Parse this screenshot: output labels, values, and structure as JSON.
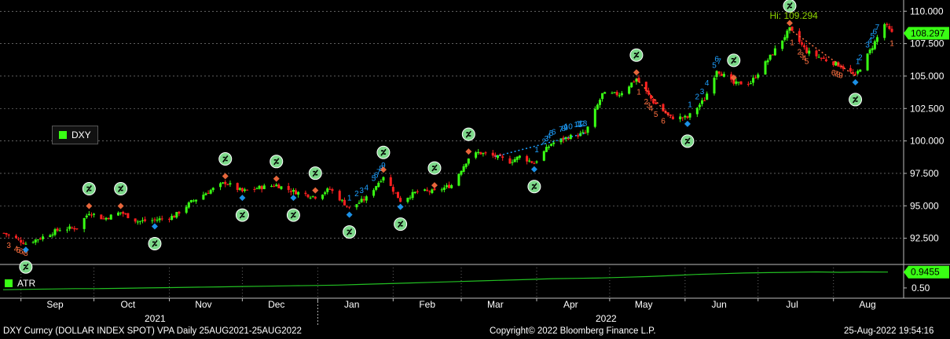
{
  "legend": {
    "main": "DXY",
    "atr": "ATR"
  },
  "footer": {
    "left": "DXY Curncy (DOLLAR INDEX SPOT) VPA  Daily 25AUG2021-25AUG2022",
    "center": "Copyright© 2022 Bloomberg Finance L.P.",
    "right": "25-Aug-2022 19:54:16"
  },
  "years": [
    "2021",
    "2022"
  ],
  "colors": {
    "up": "#39ff14",
    "down": "#ff2020",
    "grid": "#9a9a9a",
    "atr": "#22c022",
    "hi_label": "#8fd400",
    "last_price_box": "#39ff14",
    "count_up": "#1ea0ff",
    "count_down": "#ff7040",
    "signal_circle": "#7dd88a"
  },
  "chart_data": [
    {
      "type": "candlestick",
      "title": "DXY",
      "x_range": [
        "2021-08-25",
        "2022-08-25"
      ],
      "xticks": [
        "Sep",
        "Oct",
        "Nov",
        "Dec",
        "Jan",
        "Feb",
        "Mar",
        "Apr",
        "May",
        "Jun",
        "Jul",
        "Aug"
      ],
      "yticks": [
        "92.500",
        "95.000",
        "97.500",
        "100.000",
        "102.500",
        "105.000",
        "107.500",
        "110.000"
      ],
      "ylim": [
        90.6,
        110.5
      ],
      "grid": true,
      "last_price": "108.297",
      "annotations": {
        "high_label": "Hi: 109.294"
      },
      "close_path": [
        {
          "date": "2021-08-25",
          "close": 92.9
        },
        {
          "date": "2021-09-03",
          "close": 92.1
        },
        {
          "date": "2021-09-10",
          "close": 92.6
        },
        {
          "date": "2021-09-17",
          "close": 93.2
        },
        {
          "date": "2021-09-24",
          "close": 93.3
        },
        {
          "date": "2021-09-29",
          "close": 94.5
        },
        {
          "date": "2021-10-05",
          "close": 94.0
        },
        {
          "date": "2021-10-12",
          "close": 94.5
        },
        {
          "date": "2021-10-19",
          "close": 93.8
        },
        {
          "date": "2021-10-26",
          "close": 93.9
        },
        {
          "date": "2021-11-03",
          "close": 94.2
        },
        {
          "date": "2021-11-10",
          "close": 95.3
        },
        {
          "date": "2021-11-17",
          "close": 96.1
        },
        {
          "date": "2021-11-24",
          "close": 96.8
        },
        {
          "date": "2021-12-01",
          "close": 96.1
        },
        {
          "date": "2021-12-08",
          "close": 96.4
        },
        {
          "date": "2021-12-15",
          "close": 96.6
        },
        {
          "date": "2021-12-22",
          "close": 96.1
        },
        {
          "date": "2021-12-31",
          "close": 95.7
        },
        {
          "date": "2022-01-06",
          "close": 96.3
        },
        {
          "date": "2022-01-14",
          "close": 94.8
        },
        {
          "date": "2022-01-21",
          "close": 95.6
        },
        {
          "date": "2022-01-28",
          "close": 97.3
        },
        {
          "date": "2022-02-04",
          "close": 95.4
        },
        {
          "date": "2022-02-11",
          "close": 96.1
        },
        {
          "date": "2022-02-18",
          "close": 96.1
        },
        {
          "date": "2022-02-25",
          "close": 96.6
        },
        {
          "date": "2022-03-04",
          "close": 98.7
        },
        {
          "date": "2022-03-08",
          "close": 99.1
        },
        {
          "date": "2022-03-15",
          "close": 98.8
        },
        {
          "date": "2022-03-21",
          "close": 98.4
        },
        {
          "date": "2022-03-25",
          "close": 98.8
        },
        {
          "date": "2022-03-31",
          "close": 98.3
        },
        {
          "date": "2022-04-07",
          "close": 99.8
        },
        {
          "date": "2022-04-14",
          "close": 100.3
        },
        {
          "date": "2022-04-21",
          "close": 100.6
        },
        {
          "date": "2022-04-28",
          "close": 103.6
        },
        {
          "date": "2022-05-05",
          "close": 103.6
        },
        {
          "date": "2022-05-12",
          "close": 104.8
        },
        {
          "date": "2022-05-19",
          "close": 103.0
        },
        {
          "date": "2022-05-26",
          "close": 101.8
        },
        {
          "date": "2022-06-02",
          "close": 101.8
        },
        {
          "date": "2022-06-09",
          "close": 103.2
        },
        {
          "date": "2022-06-14",
          "close": 105.5
        },
        {
          "date": "2022-06-21",
          "close": 104.4
        },
        {
          "date": "2022-06-28",
          "close": 104.5
        },
        {
          "date": "2022-07-06",
          "close": 106.5
        },
        {
          "date": "2022-07-14",
          "close": 108.6
        },
        {
          "date": "2022-07-21",
          "close": 106.9
        },
        {
          "date": "2022-07-28",
          "close": 106.3
        },
        {
          "date": "2022-08-04",
          "close": 105.8
        },
        {
          "date": "2022-08-10",
          "close": 105.0
        },
        {
          "date": "2022-08-15",
          "close": 106.6
        },
        {
          "date": "2022-08-22",
          "close": 109.0
        },
        {
          "date": "2022-08-25",
          "close": 108.3
        }
      ],
      "signals": [
        {
          "date": "2021-09-03",
          "side": "below"
        },
        {
          "date": "2021-09-29",
          "side": "above"
        },
        {
          "date": "2021-10-12",
          "side": "above"
        },
        {
          "date": "2021-10-26",
          "side": "below"
        },
        {
          "date": "2021-11-24",
          "side": "above"
        },
        {
          "date": "2021-12-01",
          "side": "below"
        },
        {
          "date": "2021-12-15",
          "side": "above"
        },
        {
          "date": "2021-12-22",
          "side": "below"
        },
        {
          "date": "2021-12-31",
          "side": "above"
        },
        {
          "date": "2022-01-14",
          "side": "below"
        },
        {
          "date": "2022-01-28",
          "side": "above"
        },
        {
          "date": "2022-02-04",
          "side": "below"
        },
        {
          "date": "2022-02-18",
          "side": "above"
        },
        {
          "date": "2022-03-04",
          "side": "above"
        },
        {
          "date": "2022-03-31",
          "side": "below"
        },
        {
          "date": "2022-05-12",
          "side": "above"
        },
        {
          "date": "2022-06-02",
          "side": "below"
        },
        {
          "date": "2022-06-21",
          "side": "above"
        },
        {
          "date": "2022-07-14",
          "side": "above"
        },
        {
          "date": "2022-08-10",
          "side": "below"
        }
      ],
      "sequential_counts": [
        {
          "date": "2021-08-27",
          "label": "3",
          "color": "down"
        },
        {
          "date": "2021-08-30",
          "label": "4",
          "color": "down"
        },
        {
          "date": "2021-08-31",
          "label": "5",
          "color": "down"
        },
        {
          "date": "2021-09-01",
          "label": "6",
          "color": "down"
        },
        {
          "date": "2021-09-02",
          "label": "7",
          "color": "down"
        },
        {
          "date": "2021-09-03",
          "label": "8",
          "color": "down"
        },
        {
          "date": "2022-01-14",
          "label": "1",
          "color": "up"
        },
        {
          "date": "2022-01-17",
          "label": "2",
          "color": "up"
        },
        {
          "date": "2022-01-19",
          "label": "3",
          "color": "up"
        },
        {
          "date": "2022-01-21",
          "label": "4",
          "color": "up"
        },
        {
          "date": "2022-01-24",
          "label": "5",
          "color": "up"
        },
        {
          "date": "2022-01-25",
          "label": "6",
          "color": "up"
        },
        {
          "date": "2022-01-26",
          "label": "7",
          "color": "up"
        },
        {
          "date": "2022-01-27",
          "label": "8",
          "color": "up"
        },
        {
          "date": "2022-01-28",
          "label": "9",
          "color": "up"
        },
        {
          "date": "2022-04-01",
          "label": "1",
          "color": "up"
        },
        {
          "date": "2022-04-04",
          "label": "2",
          "color": "up"
        },
        {
          "date": "2022-04-05",
          "label": "3",
          "color": "up"
        },
        {
          "date": "2022-04-06",
          "label": "4",
          "color": "up"
        },
        {
          "date": "2022-04-07",
          "label": "5",
          "color": "up"
        },
        {
          "date": "2022-04-08",
          "label": "6",
          "color": "up"
        },
        {
          "date": "2022-04-11",
          "label": "7",
          "color": "up"
        },
        {
          "date": "2022-04-12",
          "label": "8",
          "color": "up"
        },
        {
          "date": "2022-04-13",
          "label": "9",
          "color": "up"
        },
        {
          "date": "2022-04-14",
          "label": "10",
          "color": "up"
        },
        {
          "date": "2022-04-18",
          "label": "11",
          "color": "up"
        },
        {
          "date": "2022-04-19",
          "label": "12",
          "color": "up"
        },
        {
          "date": "2022-04-20",
          "label": "13",
          "color": "up"
        },
        {
          "date": "2022-05-13",
          "label": "1",
          "color": "down"
        },
        {
          "date": "2022-05-16",
          "label": "2",
          "color": "down"
        },
        {
          "date": "2022-05-17",
          "label": "3",
          "color": "down"
        },
        {
          "date": "2022-05-18",
          "label": "4",
          "color": "down"
        },
        {
          "date": "2022-05-20",
          "label": "5",
          "color": "down"
        },
        {
          "date": "2022-05-23",
          "label": "6",
          "color": "down"
        },
        {
          "date": "2022-06-03",
          "label": "1",
          "color": "up"
        },
        {
          "date": "2022-06-06",
          "label": "2",
          "color": "up"
        },
        {
          "date": "2022-06-08",
          "label": "3",
          "color": "up"
        },
        {
          "date": "2022-06-10",
          "label": "4",
          "color": "up"
        },
        {
          "date": "2022-06-13",
          "label": "5",
          "color": "up"
        },
        {
          "date": "2022-06-14",
          "label": "6",
          "color": "up"
        },
        {
          "date": "2022-06-15",
          "label": "7",
          "color": "up"
        },
        {
          "date": "2022-07-15",
          "label": "1",
          "color": "down"
        },
        {
          "date": "2022-07-18",
          "label": "2",
          "color": "down"
        },
        {
          "date": "2022-07-19",
          "label": "3",
          "color": "down"
        },
        {
          "date": "2022-07-20",
          "label": "4",
          "color": "down"
        },
        {
          "date": "2022-07-21",
          "label": "5",
          "color": "down"
        },
        {
          "date": "2022-08-01",
          "label": "6",
          "color": "down"
        },
        {
          "date": "2022-08-02",
          "label": "7",
          "color": "down"
        },
        {
          "date": "2022-08-03",
          "label": "8",
          "color": "down"
        },
        {
          "date": "2022-08-04",
          "label": "9",
          "color": "down"
        },
        {
          "date": "2022-08-11",
          "label": "1",
          "color": "up"
        },
        {
          "date": "2022-08-12",
          "label": "2",
          "color": "up"
        },
        {
          "date": "2022-08-15",
          "label": "3",
          "color": "up"
        },
        {
          "date": "2022-08-16",
          "label": "4",
          "color": "up"
        },
        {
          "date": "2022-08-17",
          "label": "5",
          "color": "up"
        },
        {
          "date": "2022-08-18",
          "label": "6",
          "color": "up"
        },
        {
          "date": "2022-08-19",
          "label": "7",
          "color": "up"
        },
        {
          "date": "2022-08-25",
          "label": "1",
          "color": "down"
        }
      ]
    },
    {
      "type": "line",
      "title": "ATR",
      "yticks": [
        "0.50"
      ],
      "ylim": [
        0.3,
        1.05
      ],
      "last_value": "0.9455",
      "values": [
        0.45,
        0.46,
        0.47,
        0.48,
        0.48,
        0.49,
        0.5,
        0.51,
        0.52,
        0.53,
        0.54,
        0.55,
        0.56,
        0.57,
        0.58,
        0.6,
        0.62,
        0.64,
        0.66,
        0.68,
        0.7,
        0.72,
        0.74,
        0.76,
        0.77,
        0.78,
        0.8,
        0.82,
        0.85,
        0.88,
        0.9,
        0.92,
        0.93,
        0.94,
        0.95,
        0.94,
        0.95,
        0.9455
      ]
    }
  ]
}
